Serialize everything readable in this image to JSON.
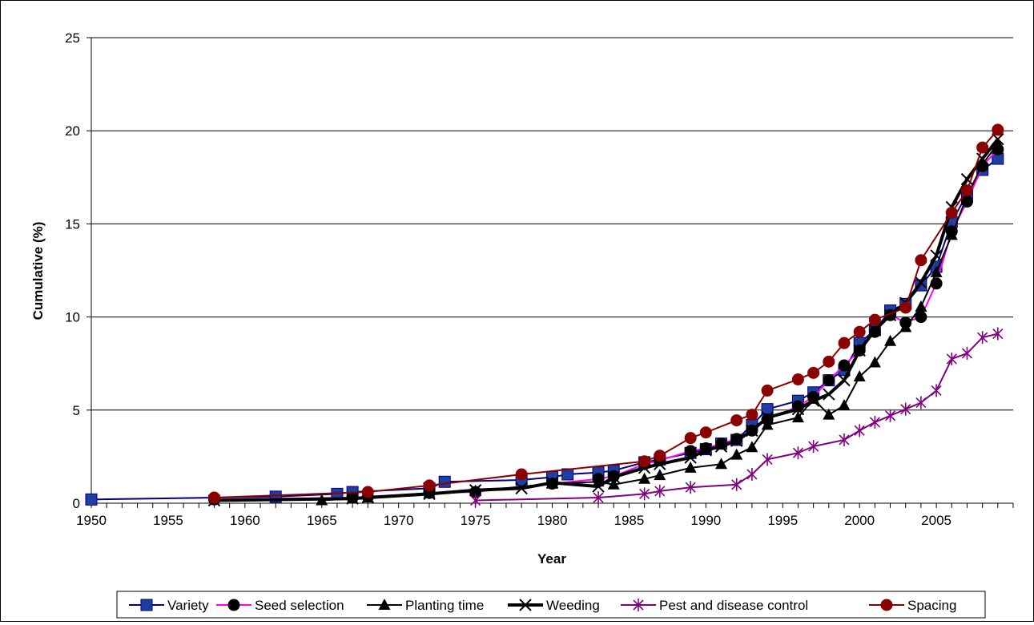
{
  "chart_data": {
    "type": "line",
    "xlabel": "Year",
    "ylabel": "Cumulative (%)",
    "xlim": [
      1950,
      2009
    ],
    "ylim": [
      0,
      25
    ],
    "xticks": [
      1950,
      1955,
      1960,
      1965,
      1970,
      1975,
      1980,
      1985,
      1990,
      1995,
      2000,
      2005
    ],
    "yticks": [
      0,
      5,
      10,
      15,
      20,
      25
    ],
    "grid": "horizontal",
    "legend_position": "bottom",
    "series": [
      {
        "name": "Variety",
        "color": "#000080",
        "marker": "square",
        "marker_color": "#1f3fa0",
        "line_width": 2,
        "points": [
          [
            1950,
            0.2
          ],
          [
            1962,
            0.35
          ],
          [
            1966,
            0.5
          ],
          [
            1967,
            0.6
          ],
          [
            1972,
            0.8
          ],
          [
            1973,
            1.15
          ],
          [
            1978,
            1.25
          ],
          [
            1980,
            1.4
          ],
          [
            1981,
            1.55
          ],
          [
            1983,
            1.65
          ],
          [
            1984,
            1.75
          ],
          [
            1986,
            2.2
          ],
          [
            1987,
            2.35
          ],
          [
            1989,
            2.7
          ],
          [
            1990,
            2.9
          ],
          [
            1991,
            3.2
          ],
          [
            1992,
            3.4
          ],
          [
            1993,
            4.2
          ],
          [
            1994,
            5.05
          ],
          [
            1996,
            5.5
          ],
          [
            1997,
            5.95
          ],
          [
            1998,
            6.6
          ],
          [
            1999,
            7.15
          ],
          [
            2000,
            8.6
          ],
          [
            2001,
            9.3
          ],
          [
            2002,
            10.35
          ],
          [
            2003,
            10.7
          ],
          [
            2004,
            11.7
          ],
          [
            2005,
            12.7
          ],
          [
            2006,
            15.1
          ],
          [
            2007,
            16.6
          ],
          [
            2008,
            17.9
          ],
          [
            2009,
            18.5
          ]
        ]
      },
      {
        "name": "Seed selection",
        "color": "#ff00ff",
        "marker": "circle",
        "marker_color": "#000000",
        "line_width": 2,
        "points": [
          [
            1958,
            0.2
          ],
          [
            1967,
            0.3
          ],
          [
            1968,
            0.35
          ],
          [
            1972,
            0.55
          ],
          [
            1975,
            0.6
          ],
          [
            1980,
            1.05
          ],
          [
            1983,
            1.3
          ],
          [
            1984,
            1.45
          ],
          [
            1986,
            2.1
          ],
          [
            1987,
            2.3
          ],
          [
            1989,
            2.8
          ],
          [
            1990,
            2.95
          ],
          [
            1991,
            3.2
          ],
          [
            1992,
            3.45
          ],
          [
            1993,
            3.9
          ],
          [
            1994,
            4.5
          ],
          [
            1996,
            5.2
          ],
          [
            1997,
            5.7
          ],
          [
            1998,
            6.6
          ],
          [
            1999,
            7.4
          ],
          [
            2000,
            8.2
          ],
          [
            2001,
            9.2
          ],
          [
            2002,
            10.1
          ],
          [
            2003,
            9.7
          ],
          [
            2004,
            10.0
          ],
          [
            2005,
            11.8
          ],
          [
            2006,
            14.6
          ],
          [
            2007,
            16.2
          ],
          [
            2008,
            18.1
          ],
          [
            2009,
            19.0
          ]
        ]
      },
      {
        "name": "Planting time",
        "color": "#000000",
        "marker": "triangle",
        "marker_color": "#000000",
        "line_width": 2,
        "points": [
          [
            1965,
            0.15
          ],
          [
            1967,
            0.25
          ],
          [
            1968,
            0.3
          ],
          [
            1972,
            0.55
          ],
          [
            1975,
            0.65
          ],
          [
            1980,
            1.05
          ],
          [
            1983,
            1.15
          ],
          [
            1984,
            1.0
          ],
          [
            1986,
            1.3
          ],
          [
            1987,
            1.5
          ],
          [
            1989,
            1.9
          ],
          [
            1991,
            2.1
          ],
          [
            1992,
            2.6
          ],
          [
            1993,
            3.0
          ],
          [
            1994,
            4.2
          ],
          [
            1996,
            4.6
          ],
          [
            1997,
            5.6
          ],
          [
            1998,
            4.75
          ],
          [
            1999,
            5.25
          ],
          [
            2000,
            6.8
          ],
          [
            2001,
            7.55
          ],
          [
            2002,
            8.7
          ],
          [
            2003,
            9.45
          ],
          [
            2004,
            10.55
          ],
          [
            2005,
            12.4
          ],
          [
            2006,
            14.4
          ],
          [
            2007,
            16.5
          ],
          [
            2008,
            18.2
          ],
          [
            2009,
            19.3
          ]
        ]
      },
      {
        "name": "Weeding",
        "color": "#000000",
        "marker": "cross",
        "marker_color": "#000000",
        "line_width": 4,
        "points": [
          [
            1958,
            0.15
          ],
          [
            1967,
            0.25
          ],
          [
            1968,
            0.3
          ],
          [
            1972,
            0.5
          ],
          [
            1975,
            0.7
          ],
          [
            1978,
            0.8
          ],
          [
            1980,
            1.1
          ],
          [
            1983,
            0.9
          ],
          [
            1984,
            1.4
          ],
          [
            1986,
            1.9
          ],
          [
            1987,
            2.1
          ],
          [
            1989,
            2.45
          ],
          [
            1990,
            2.85
          ],
          [
            1991,
            3.05
          ],
          [
            1992,
            3.35
          ],
          [
            1993,
            3.9
          ],
          [
            1994,
            4.6
          ],
          [
            1996,
            5.05
          ],
          [
            1997,
            5.5
          ],
          [
            1998,
            5.85
          ],
          [
            1999,
            6.6
          ],
          [
            2000,
            8.2
          ],
          [
            2001,
            9.3
          ],
          [
            2002,
            10.1
          ],
          [
            2003,
            10.75
          ],
          [
            2004,
            11.85
          ],
          [
            2005,
            13.3
          ],
          [
            2006,
            15.9
          ],
          [
            2007,
            17.4
          ],
          [
            2008,
            18.5
          ],
          [
            2009,
            19.55
          ]
        ]
      },
      {
        "name": "Pest and disease control",
        "color": "#800080",
        "marker": "asterisk",
        "marker_color": "#800080",
        "line_width": 2,
        "points": [
          [
            1975,
            0.15
          ],
          [
            1983,
            0.3
          ],
          [
            1986,
            0.5
          ],
          [
            1987,
            0.65
          ],
          [
            1989,
            0.85
          ],
          [
            1992,
            1.0
          ],
          [
            1993,
            1.55
          ],
          [
            1994,
            2.35
          ],
          [
            1996,
            2.7
          ],
          [
            1997,
            3.05
          ],
          [
            1999,
            3.4
          ],
          [
            2000,
            3.9
          ],
          [
            2001,
            4.35
          ],
          [
            2002,
            4.7
          ],
          [
            2003,
            5.05
          ],
          [
            2004,
            5.4
          ],
          [
            2005,
            6.05
          ],
          [
            2006,
            7.75
          ],
          [
            2007,
            8.05
          ],
          [
            2008,
            8.9
          ],
          [
            2009,
            9.1
          ]
        ]
      },
      {
        "name": "Spacing",
        "color": "#8b0000",
        "marker": "circle",
        "marker_color": "#8b0000",
        "line_width": 2,
        "points": [
          [
            1958,
            0.3
          ],
          [
            1968,
            0.6
          ],
          [
            1972,
            0.95
          ],
          [
            1978,
            1.55
          ],
          [
            1986,
            2.25
          ],
          [
            1987,
            2.55
          ],
          [
            1989,
            3.5
          ],
          [
            1990,
            3.8
          ],
          [
            1992,
            4.45
          ],
          [
            1993,
            4.75
          ],
          [
            1994,
            6.05
          ],
          [
            1996,
            6.65
          ],
          [
            1997,
            7.0
          ],
          [
            1998,
            7.6
          ],
          [
            1999,
            8.6
          ],
          [
            2000,
            9.2
          ],
          [
            2001,
            9.85
          ],
          [
            2003,
            10.5
          ],
          [
            2004,
            13.05
          ],
          [
            2006,
            15.6
          ],
          [
            2007,
            16.8
          ],
          [
            2008,
            19.1
          ],
          [
            2009,
            20.05
          ]
        ]
      }
    ]
  }
}
